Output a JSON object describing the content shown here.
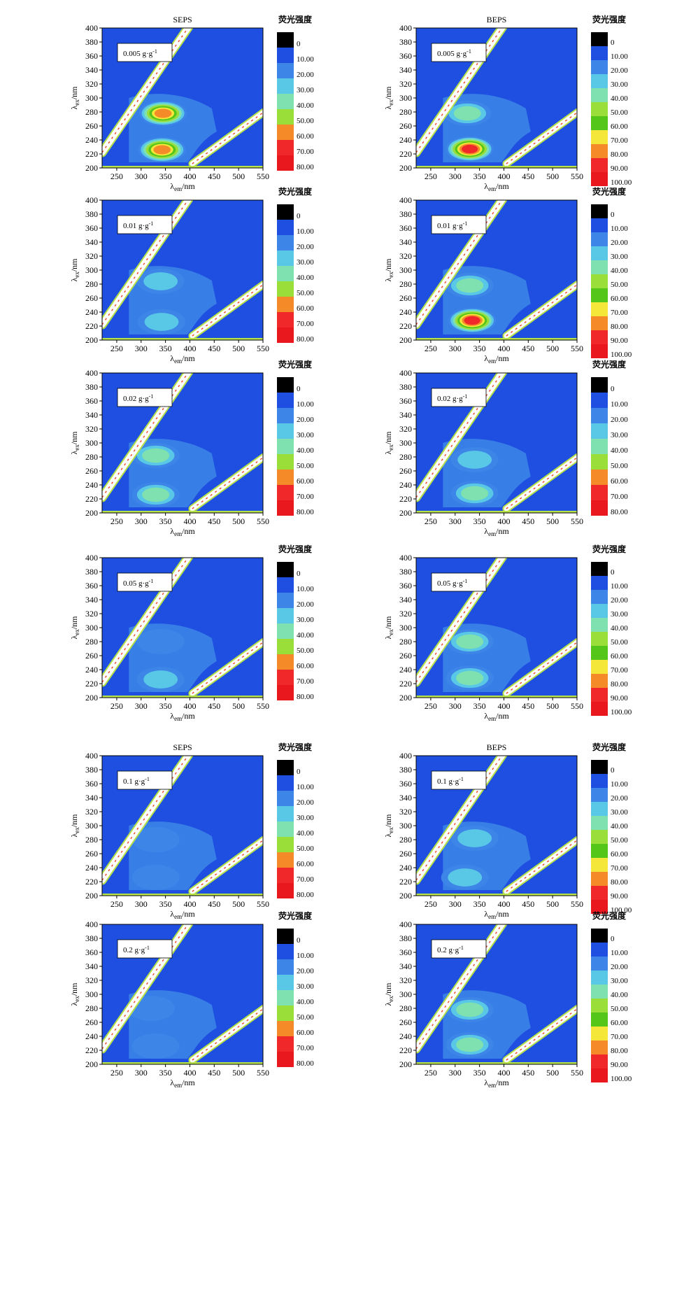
{
  "chart_data": [
    {
      "type": "heatmap",
      "title": "SEPS",
      "annotation": "0.005 g·g",
      "annotation_sup": "-1",
      "xlabel": "λ",
      "xlabel_sub": "em",
      "xlabel_unit": "/nm",
      "ylabel": "λ",
      "ylabel_sub": "ex",
      "ylabel_unit": "/nm",
      "xlim": [
        220,
        550
      ],
      "ylim": [
        200,
        400
      ],
      "xticks": [
        "250",
        "300",
        "350",
        "400",
        "450",
        "500",
        "550"
      ],
      "yticks": [
        "200",
        "220",
        "240",
        "260",
        "280",
        "300",
        "320",
        "340",
        "360",
        "380",
        "400"
      ],
      "legend_title": "荧光强度",
      "legend_labels": [
        "0",
        "10.00",
        "20.00",
        "30.00",
        "40.00",
        "50.00",
        "60.00",
        "70.00",
        "80.00"
      ],
      "peaks": [
        {
          "x": 345,
          "y": 278,
          "level": 8
        },
        {
          "x": 343,
          "y": 226,
          "level": 8
        }
      ]
    },
    {
      "type": "heatmap",
      "title": "BEPS",
      "annotation": "0.005 g·g",
      "annotation_sup": "-1",
      "xlabel": "λ",
      "xlabel_sub": "em",
      "xlabel_unit": "/nm",
      "ylabel": "λ",
      "ylabel_sub": "ex",
      "ylabel_unit": "/nm",
      "xlim": [
        220,
        550
      ],
      "ylim": [
        200,
        400
      ],
      "xticks": [
        "250",
        "300",
        "350",
        "400",
        "450",
        "500",
        "550"
      ],
      "yticks": [
        "200",
        "220",
        "240",
        "260",
        "280",
        "300",
        "320",
        "340",
        "360",
        "380",
        "400"
      ],
      "legend_title": "荧光强度",
      "legend_labels": [
        "0",
        "10.00",
        "20.00",
        "30.00",
        "40.00",
        "50.00",
        "60.00",
        "70.00",
        "80.00",
        "90.00",
        "100.00"
      ],
      "peaks": [
        {
          "x": 325,
          "y": 278,
          "level": 4
        },
        {
          "x": 330,
          "y": 227,
          "level": 9
        }
      ]
    },
    {
      "type": "heatmap",
      "title": "",
      "annotation": "0.01 g·g",
      "annotation_sup": "-1",
      "xlabel": "λ",
      "xlabel_sub": "em",
      "xlabel_unit": "/nm",
      "ylabel": "λ",
      "ylabel_sub": "ex",
      "ylabel_unit": "/nm",
      "xlim": [
        220,
        550
      ],
      "ylim": [
        200,
        400
      ],
      "xticks": [
        "250",
        "300",
        "350",
        "400",
        "450",
        "500",
        "550"
      ],
      "yticks": [
        "200",
        "220",
        "240",
        "260",
        "280",
        "300",
        "320",
        "340",
        "360",
        "380",
        "400"
      ],
      "legend_title": "荧光强度",
      "legend_labels": [
        "0",
        "10.00",
        "20.00",
        "30.00",
        "40.00",
        "50.00",
        "60.00",
        "70.00",
        "80.00"
      ],
      "peaks": [
        {
          "x": 340,
          "y": 284,
          "level": 3
        },
        {
          "x": 342,
          "y": 226,
          "level": 3
        }
      ]
    },
    {
      "type": "heatmap",
      "title": "",
      "annotation": "0.01 g·g",
      "annotation_sup": "-1",
      "xlabel": "λ",
      "xlabel_sub": "em",
      "xlabel_unit": "/nm",
      "ylabel": "λ",
      "ylabel_sub": "ex",
      "ylabel_unit": "/nm",
      "xlim": [
        220,
        550
      ],
      "ylim": [
        200,
        400
      ],
      "xticks": [
        "250",
        "300",
        "350",
        "400",
        "450",
        "500",
        "550"
      ],
      "yticks": [
        "200",
        "220",
        "240",
        "260",
        "280",
        "300",
        "320",
        "340",
        "360",
        "380",
        "400"
      ],
      "legend_title": "荧光强度",
      "legend_labels": [
        "0",
        "10.00",
        "20.00",
        "30.00",
        "40.00",
        "50.00",
        "60.00",
        "70.00",
        "80.00",
        "90.00",
        "100.00"
      ],
      "peaks": [
        {
          "x": 330,
          "y": 278,
          "level": 4
        },
        {
          "x": 335,
          "y": 228,
          "level": 9
        }
      ]
    },
    {
      "type": "heatmap",
      "title": "",
      "annotation": "0.02 g·g",
      "annotation_sup": "-1",
      "xlabel": "λ",
      "xlabel_sub": "em",
      "xlabel_unit": "/nm",
      "ylabel": "λ",
      "ylabel_sub": "ex",
      "ylabel_unit": "/nm",
      "xlim": [
        220,
        550
      ],
      "ylim": [
        200,
        400
      ],
      "xticks": [
        "250",
        "300",
        "350",
        "400",
        "450",
        "500",
        "550"
      ],
      "yticks": [
        "200",
        "220",
        "240",
        "260",
        "280",
        "300",
        "320",
        "340",
        "360",
        "380",
        "400"
      ],
      "legend_title": "荧光强度",
      "legend_labels": [
        "0",
        "10.00",
        "20.00",
        "30.00",
        "40.00",
        "50.00",
        "60.00",
        "70.00",
        "80.00"
      ],
      "peaks": [
        {
          "x": 330,
          "y": 282,
          "level": 4
        },
        {
          "x": 330,
          "y": 226,
          "level": 4
        }
      ]
    },
    {
      "type": "heatmap",
      "title": "",
      "annotation": "0.02 g·g",
      "annotation_sup": "-1",
      "xlabel": "λ",
      "xlabel_sub": "em",
      "xlabel_unit": "/nm",
      "ylabel": "λ",
      "ylabel_sub": "ex",
      "ylabel_unit": "/nm",
      "xlim": [
        220,
        550
      ],
      "ylim": [
        200,
        400
      ],
      "xticks": [
        "250",
        "300",
        "350",
        "400",
        "450",
        "500",
        "550"
      ],
      "yticks": [
        "200",
        "220",
        "240",
        "260",
        "280",
        "300",
        "320",
        "340",
        "360",
        "380",
        "400"
      ],
      "legend_title": "荧光强度",
      "legend_labels": [
        "0",
        "10.00",
        "20.00",
        "30.00",
        "40.00",
        "50.00",
        "60.00",
        "70.00",
        "80.00"
      ],
      "peaks": [
        {
          "x": 340,
          "y": 276,
          "level": 3
        },
        {
          "x": 340,
          "y": 228,
          "level": 4
        }
      ]
    },
    {
      "type": "heatmap",
      "title": "",
      "annotation": "0.05 g·g",
      "annotation_sup": "-1",
      "xlabel": "λ",
      "xlabel_sub": "em",
      "xlabel_unit": "/nm",
      "ylabel": "λ",
      "ylabel_sub": "ex",
      "ylabel_unit": "/nm",
      "xlim": [
        220,
        550
      ],
      "ylim": [
        200,
        400
      ],
      "xticks": [
        "250",
        "300",
        "350",
        "400",
        "450",
        "500",
        "550"
      ],
      "yticks": [
        "200",
        "220",
        "240",
        "260",
        "280",
        "300",
        "320",
        "340",
        "360",
        "380",
        "400"
      ],
      "legend_title": "荧光强度",
      "legend_labels": [
        "0",
        "10.00",
        "20.00",
        "30.00",
        "40.00",
        "50.00",
        "60.00",
        "70.00",
        "80.00"
      ],
      "peaks": [
        {
          "x": 340,
          "y": 280,
          "level": 2
        },
        {
          "x": 340,
          "y": 226,
          "level": 3
        }
      ]
    },
    {
      "type": "heatmap",
      "title": "",
      "annotation": "0.05 g·g",
      "annotation_sup": "-1",
      "xlabel": "λ",
      "xlabel_sub": "em",
      "xlabel_unit": "/nm",
      "ylabel": "λ",
      "ylabel_sub": "ex",
      "ylabel_unit": "/nm",
      "xlim": [
        220,
        550
      ],
      "ylim": [
        200,
        400
      ],
      "xticks": [
        "250",
        "300",
        "350",
        "400",
        "450",
        "500",
        "550"
      ],
      "yticks": [
        "200",
        "220",
        "240",
        "260",
        "280",
        "300",
        "320",
        "340",
        "360",
        "380",
        "400"
      ],
      "legend_title": "荧光强度",
      "legend_labels": [
        "0",
        "10.00",
        "20.00",
        "30.00",
        "40.00",
        "50.00",
        "60.00",
        "70.00",
        "80.00",
        "90.00",
        "100.00"
      ],
      "peaks": [
        {
          "x": 330,
          "y": 280,
          "level": 4
        },
        {
          "x": 330,
          "y": 228,
          "level": 4
        }
      ]
    },
    {
      "type": "heatmap",
      "title": "SEPS",
      "annotation": "0.1 g·g",
      "annotation_sup": "-1",
      "xlabel": "λ",
      "xlabel_sub": "em",
      "xlabel_unit": "/nm",
      "ylabel": "λ",
      "ylabel_sub": "ex",
      "ylabel_unit": "/nm",
      "xlim": [
        220,
        550
      ],
      "ylim": [
        200,
        400
      ],
      "xticks": [
        "250",
        "300",
        "350",
        "400",
        "450",
        "500",
        "550"
      ],
      "yticks": [
        "200",
        "220",
        "240",
        "260",
        "280",
        "300",
        "320",
        "340",
        "360",
        "380",
        "400"
      ],
      "legend_title": "荧光强度",
      "legend_labels": [
        "0",
        "10.00",
        "20.00",
        "30.00",
        "40.00",
        "50.00",
        "60.00",
        "70.00",
        "80.00"
      ],
      "peaks": [
        {
          "x": 330,
          "y": 280,
          "level": 2
        },
        {
          "x": 330,
          "y": 226,
          "level": 2
        }
      ]
    },
    {
      "type": "heatmap",
      "title": "BEPS",
      "annotation": "0.1 g·g",
      "annotation_sup": "-1",
      "xlabel": "λ",
      "xlabel_sub": "em",
      "xlabel_unit": "/nm",
      "ylabel": "λ",
      "ylabel_sub": "ex",
      "ylabel_unit": "/nm",
      "xlim": [
        220,
        550
      ],
      "ylim": [
        200,
        400
      ],
      "xticks": [
        "250",
        "300",
        "350",
        "400",
        "450",
        "500",
        "550"
      ],
      "yticks": [
        "200",
        "220",
        "240",
        "260",
        "280",
        "300",
        "320",
        "340",
        "360",
        "380",
        "400"
      ],
      "legend_title": "荧光强度",
      "legend_labels": [
        "0",
        "10.00",
        "20.00",
        "30.00",
        "40.00",
        "50.00",
        "60.00",
        "70.00",
        "80.00",
        "90.00",
        "100.00"
      ],
      "peaks": [
        {
          "x": 340,
          "y": 282,
          "level": 3
        },
        {
          "x": 320,
          "y": 226,
          "level": 3
        }
      ]
    },
    {
      "type": "heatmap",
      "title": "",
      "annotation": "0.2 g·g",
      "annotation_sup": "-1",
      "xlabel": "λ",
      "xlabel_sub": "em",
      "xlabel_unit": "/nm",
      "ylabel": "λ",
      "ylabel_sub": "ex",
      "ylabel_unit": "/nm",
      "xlim": [
        220,
        550
      ],
      "ylim": [
        200,
        400
      ],
      "xticks": [
        "250",
        "300",
        "350",
        "400",
        "450",
        "500",
        "550"
      ],
      "yticks": [
        "200",
        "220",
        "240",
        "260",
        "280",
        "300",
        "320",
        "340",
        "360",
        "380",
        "400"
      ],
      "legend_title": "荧光强度",
      "legend_labels": [
        "0",
        "10.00",
        "20.00",
        "30.00",
        "40.00",
        "50.00",
        "60.00",
        "70.00",
        "80.00"
      ],
      "peaks": [
        {
          "x": 320,
          "y": 280,
          "level": 2
        },
        {
          "x": 330,
          "y": 226,
          "level": 2
        }
      ]
    },
    {
      "type": "heatmap",
      "title": "",
      "annotation": "0.2 g·g",
      "annotation_sup": "-1",
      "xlabel": "λ",
      "xlabel_sub": "em",
      "xlabel_unit": "/nm",
      "ylabel": "λ",
      "ylabel_sub": "ex",
      "ylabel_unit": "/nm",
      "xlim": [
        220,
        550
      ],
      "ylim": [
        200,
        400
      ],
      "xticks": [
        "250",
        "300",
        "350",
        "400",
        "450",
        "500",
        "550"
      ],
      "yticks": [
        "200",
        "220",
        "240",
        "260",
        "280",
        "300",
        "320",
        "340",
        "360",
        "380",
        "400"
      ],
      "legend_title": "荧光强度",
      "legend_labels": [
        "0",
        "10.00",
        "20.00",
        "30.00",
        "40.00",
        "50.00",
        "60.00",
        "70.00",
        "80.00",
        "90.00",
        "100.00"
      ],
      "peaks": [
        {
          "x": 330,
          "y": 278,
          "level": 4
        },
        {
          "x": 330,
          "y": 228,
          "level": 4
        }
      ]
    }
  ],
  "colors": {
    "background": "#1f4fe0",
    "levels": [
      "#000000",
      "#1f4fe0",
      "#3d86e8",
      "#59c8e6",
      "#7fe0b0",
      "#9ade3a",
      "#54c61a",
      "#f5e63a",
      "#f48a28",
      "#f0282a",
      "#e8181e"
    ],
    "scatter_band": "#ffffff",
    "scatter_edge": "#b8e24a",
    "scatter_core": "#f04020"
  }
}
